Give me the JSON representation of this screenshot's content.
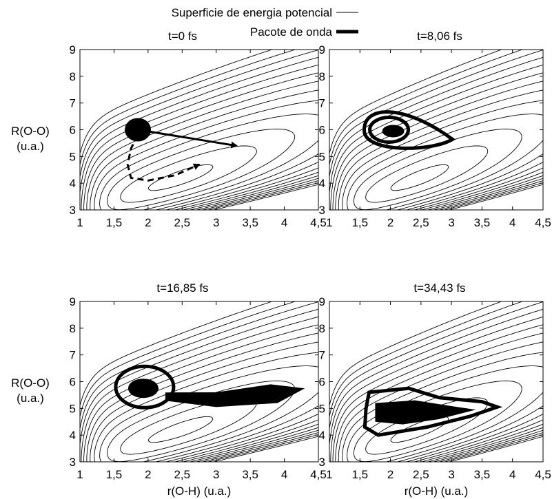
{
  "legend": {
    "entries": [
      {
        "label": "Superficie de energia potencial",
        "style": "thin"
      },
      {
        "label": "Pacote de onda",
        "style": "thick"
      }
    ]
  },
  "chart_data": [
    {
      "type": "contour",
      "title": "t=0 fs",
      "xlabel": "",
      "ylabel": "R(O-O)",
      "ylabel_unit": "(u.a.)",
      "xlim": [
        1,
        4.5
      ],
      "ylim": [
        3,
        9
      ],
      "x_ticks": [
        "1",
        "1,5",
        "2",
        "2,5",
        "3",
        "3,5",
        "4",
        "4,5"
      ],
      "y_ticks": [
        "3",
        "4",
        "5",
        "6",
        "7",
        "8",
        "9"
      ],
      "wavepacket_center": [
        1.85,
        6.0
      ],
      "annotations": [
        {
          "type": "solid-arrow",
          "from": [
            1.85,
            6.0
          ],
          "to": [
            3.3,
            5.4
          ]
        },
        {
          "type": "dashed-arrow",
          "path": [
            [
              1.85,
              5.8
            ],
            [
              1.75,
              5.3
            ],
            [
              1.7,
              4.7
            ],
            [
              1.75,
              4.2
            ],
            [
              2.0,
              4.1
            ],
            [
              2.4,
              4.3
            ],
            [
              2.75,
              4.7
            ]
          ]
        }
      ]
    },
    {
      "type": "contour",
      "title": "t=8,06 fs",
      "xlabel": "",
      "ylabel": "",
      "xlim": [
        1,
        4.5
      ],
      "ylim": [
        3,
        9
      ],
      "x_ticks": [
        "1",
        "1,5",
        "2",
        "2,5",
        "3",
        "3,5",
        "4",
        "4,5"
      ],
      "y_ticks": [
        "3",
        "4",
        "5",
        "6",
        "7",
        "8",
        "9"
      ],
      "wavepacket_center": [
        2.0,
        5.95
      ]
    },
    {
      "type": "contour",
      "title": "t=16,85 fs",
      "xlabel": "r(O-H) (u.a.)",
      "ylabel": "R(O-O)",
      "ylabel_unit": "(u.a.)",
      "xlim": [
        1,
        4.5
      ],
      "ylim": [
        3,
        9
      ],
      "x_ticks": [
        "1",
        "1,5",
        "2",
        "2,5",
        "3",
        "3,5",
        "4",
        "4,5"
      ],
      "y_ticks": [
        "3",
        "4",
        "5",
        "6",
        "7",
        "8",
        "9"
      ],
      "wavepacket_center": [
        1.95,
        5.75
      ]
    },
    {
      "type": "contour",
      "title": "t=34,43 fs",
      "xlabel": "r(O-H) (u.a.)",
      "ylabel": "",
      "xlim": [
        1,
        4.5
      ],
      "ylim": [
        3,
        9
      ],
      "x_ticks": [
        "1",
        "1,5",
        "2",
        "2,5",
        "3",
        "3,5",
        "4",
        "4,5"
      ],
      "y_ticks": [
        "3",
        "4",
        "5",
        "6",
        "7",
        "8",
        "9"
      ],
      "wavepacket_center": [
        2.4,
        4.9
      ]
    }
  ]
}
